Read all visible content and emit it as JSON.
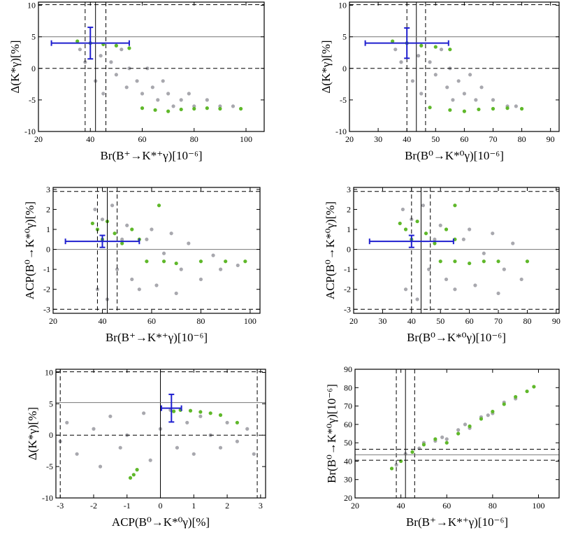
{
  "chart_data": [
    {
      "type": "scatter",
      "xlabel": "Br(B⁺→K*⁺γ)[10⁻⁶]",
      "ylabel": "Δ(K*γ)[%]",
      "xlim": [
        20,
        107
      ],
      "ylim": [
        -10,
        10.5
      ],
      "xticks": [
        20,
        40,
        60,
        80,
        100
      ],
      "yticks": [
        -10,
        -5,
        0,
        5,
        10
      ],
      "series": [
        {
          "color": "#a8a8ae",
          "x": [
            36,
            38,
            40,
            42,
            44,
            45,
            48,
            50,
            52,
            54,
            55,
            58,
            60,
            62,
            64,
            66,
            68,
            70,
            72,
            75,
            78,
            80,
            85,
            90,
            95
          ],
          "y": [
            3,
            1,
            4,
            -2,
            2,
            -4,
            1,
            -1,
            3,
            -3,
            0,
            -2,
            -4,
            0,
            -3,
            -5,
            -2,
            -4,
            -6,
            -5,
            -4,
            -6,
            -5,
            -6,
            -6
          ]
        },
        {
          "color": "#5fb82a",
          "x": [
            35,
            40,
            45,
            50,
            55,
            60,
            65,
            70,
            75,
            80,
            85,
            90,
            98
          ],
          "y": [
            4.3,
            4,
            3.8,
            3.6,
            3.2,
            -6.3,
            -6.6,
            -6.8,
            -6.5,
            -6.4,
            -6.3,
            -6.4,
            -6.4
          ]
        }
      ],
      "errorbar": {
        "x": 40,
        "y": 4,
        "xerr": 15,
        "yerr": 2.5,
        "color": "#1f1fcf"
      },
      "vlines": [
        {
          "value": 38,
          "style": "dashed"
        },
        {
          "value": 42,
          "style": "solid"
        },
        {
          "value": 46,
          "style": "dashed"
        }
      ],
      "hlines": [
        {
          "value": 0,
          "style": "dashed"
        },
        {
          "value": 5,
          "style": "solid"
        },
        {
          "value": 10.1,
          "style": "dashed"
        }
      ]
    },
    {
      "type": "scatter",
      "xlabel": "Br(B⁰→K*⁰γ)[10⁻⁶]",
      "ylabel": "Δ(K*γ)[%]",
      "xlim": [
        20,
        93
      ],
      "ylim": [
        -10,
        10.5
      ],
      "xticks": [
        20,
        30,
        40,
        50,
        60,
        70,
        80,
        90
      ],
      "yticks": [
        -10,
        -5,
        0,
        5,
        10
      ],
      "series": [
        {
          "color": "#a8a8ae",
          "x": [
            36,
            38,
            40,
            42,
            44,
            45,
            48,
            50,
            52,
            54,
            55,
            56,
            58,
            60,
            62,
            64,
            66,
            70,
            75,
            78
          ],
          "y": [
            3,
            1,
            4,
            -2,
            2,
            -4,
            1,
            -1,
            3,
            -3,
            0,
            -5,
            -2,
            -4,
            -1,
            -5,
            -3,
            -5,
            -6,
            -6
          ]
        },
        {
          "color": "#5fb82a",
          "x": [
            35,
            40,
            45,
            50,
            55,
            48,
            55,
            60,
            65,
            70,
            75,
            80
          ],
          "y": [
            4.3,
            4,
            3.6,
            3.4,
            3,
            -6.2,
            -6.6,
            -6.8,
            -6.5,
            -6.4,
            -6.3,
            -6.4
          ]
        }
      ],
      "errorbar": {
        "x": 40,
        "y": 4,
        "xerr": 14.5,
        "yerr": 2.4,
        "color": "#1f1fcf"
      },
      "vlines": [
        {
          "value": 40,
          "style": "dashed"
        },
        {
          "value": 43.3,
          "style": "solid"
        },
        {
          "value": 46.5,
          "style": "dashed"
        }
      ],
      "hlines": [
        {
          "value": 0,
          "style": "dashed"
        },
        {
          "value": 5,
          "style": "solid"
        },
        {
          "value": 10.1,
          "style": "dashed"
        }
      ]
    },
    {
      "type": "scatter",
      "xlabel": "Br(B⁺→K*⁺γ)[10⁻⁶]",
      "ylabel": "ACP(B⁰→K*⁰γ)[%]",
      "xlim": [
        20,
        104
      ],
      "ylim": [
        -3.2,
        3.1
      ],
      "xticks": [
        20,
        40,
        60,
        80,
        100
      ],
      "yticks": [
        -3,
        -2,
        -1,
        0,
        1,
        2,
        3
      ],
      "series": [
        {
          "color": "#a8a8ae",
          "x": [
            37,
            38,
            40,
            42,
            44,
            46,
            48,
            50,
            52,
            55,
            58,
            60,
            62,
            65,
            68,
            70,
            72,
            75,
            80,
            85,
            88,
            95
          ],
          "y": [
            2,
            -2,
            1.5,
            -2.5,
            2.2,
            -1,
            0.5,
            1.2,
            -1.5,
            -2,
            0.5,
            1,
            -1.8,
            -0.2,
            0.8,
            -2.2,
            -1,
            0.3,
            -1.5,
            -0.3,
            -1,
            -0.8
          ]
        },
        {
          "color": "#5fb82a",
          "x": [
            36,
            38,
            40,
            42,
            45,
            48,
            52,
            55,
            63,
            58,
            65,
            70,
            80,
            90,
            98
          ],
          "y": [
            1.3,
            1,
            0.5,
            1.4,
            0.8,
            0.3,
            1,
            0.5,
            2.2,
            -0.6,
            -0.6,
            -0.7,
            -0.6,
            -0.6,
            -0.6
          ]
        }
      ],
      "errorbar": {
        "x": 40,
        "y": 0.4,
        "xerr": 15,
        "yerr": 0.3,
        "color": "#1f1fcf"
      },
      "vlines": [
        {
          "value": 38,
          "style": "dashed"
        },
        {
          "value": 42,
          "style": "solid"
        },
        {
          "value": 46,
          "style": "dashed"
        }
      ],
      "hlines": [
        {
          "value": -3,
          "style": "dashed"
        },
        {
          "value": 0,
          "style": "solid"
        },
        {
          "value": 2.9,
          "style": "dashed"
        }
      ]
    },
    {
      "type": "scatter",
      "xlabel": "Br(B⁰→K*⁰γ)[10⁻⁶]",
      "ylabel": "ACP(B⁰→K*⁰γ)[%]",
      "xlim": [
        20,
        91
      ],
      "ylim": [
        -3.2,
        3.1
      ],
      "xticks": [
        20,
        30,
        40,
        50,
        60,
        70,
        80,
        90
      ],
      "yticks": [
        -3,
        -2,
        -1,
        0,
        1,
        2,
        3
      ],
      "series": [
        {
          "color": "#a8a8ae",
          "x": [
            37,
            38,
            40,
            42,
            44,
            46,
            48,
            50,
            52,
            55,
            58,
            60,
            62,
            65,
            68,
            70,
            72,
            75,
            78
          ],
          "y": [
            2,
            -2,
            1.5,
            -2.5,
            2.2,
            -1,
            0.5,
            1.2,
            -1.5,
            -2,
            0.5,
            1,
            -1.8,
            -0.2,
            0.8,
            -2.2,
            -1,
            0.3,
            -1.5
          ]
        },
        {
          "color": "#5fb82a",
          "x": [
            36,
            38,
            40,
            42,
            45,
            48,
            52,
            55,
            55,
            50,
            55,
            60,
            65,
            70,
            80
          ],
          "y": [
            1.3,
            1,
            0.5,
            1.4,
            0.8,
            0.3,
            1,
            0.5,
            2.2,
            -0.6,
            -0.6,
            -0.7,
            -0.6,
            -0.6,
            -0.6
          ]
        }
      ],
      "errorbar": {
        "x": 40,
        "y": 0.4,
        "xerr": 14.5,
        "yerr": 0.3,
        "color": "#1f1fcf"
      },
      "vlines": [
        {
          "value": 40,
          "style": "dashed"
        },
        {
          "value": 43.3,
          "style": "solid"
        },
        {
          "value": 46.5,
          "style": "dashed"
        }
      ],
      "hlines": [
        {
          "value": -3,
          "style": "dashed"
        },
        {
          "value": 0,
          "style": "solid"
        },
        {
          "value": 2.9,
          "style": "dashed"
        }
      ]
    },
    {
      "type": "scatter",
      "xlabel": "ACP(B⁰→K*⁰γ)[%]",
      "ylabel": "Δ(K*γ)[%]",
      "xlim": [
        -3.13,
        3.15
      ],
      "ylim": [
        -10,
        10.5
      ],
      "xticks": [
        -3,
        -2,
        -1,
        0,
        1,
        2,
        3
      ],
      "yticks": [
        -10,
        -5,
        0,
        5,
        10
      ],
      "series": [
        {
          "color": "#a8a8ae",
          "x": [
            -3,
            -2.8,
            -2.5,
            -2,
            -1.8,
            -1.5,
            -1.2,
            -1,
            -0.5,
            -0.3,
            0,
            0.3,
            0.5,
            0.8,
            1,
            1.2,
            1.5,
            1.8,
            2,
            2.3,
            2.6,
            2.8
          ],
          "y": [
            -1,
            2,
            -3,
            1,
            -5,
            3,
            -2,
            0,
            3.5,
            -4,
            1,
            4,
            -2,
            2,
            -3,
            3,
            0,
            -2,
            2,
            -1,
            1,
            -3
          ]
        },
        {
          "color": "#5fb82a",
          "x": [
            0.4,
            0.6,
            0.9,
            1.2,
            1.5,
            1.8,
            2.3,
            -0.9,
            -0.8,
            -0.7
          ],
          "y": [
            3.8,
            4,
            3.9,
            3.7,
            3.5,
            3.2,
            2,
            -6.8,
            -6.3,
            -5.5
          ]
        }
      ],
      "errorbar": {
        "x": 0.33,
        "y": 4.3,
        "xerr": 0.3,
        "yerr": 2.2,
        "color": "#1f1fcf"
      },
      "vlines": [
        {
          "value": -3,
          "style": "dashed"
        },
        {
          "value": 0,
          "style": "solid"
        },
        {
          "value": 2.9,
          "style": "dashed"
        }
      ],
      "hlines": [
        {
          "value": 0,
          "style": "dashed"
        },
        {
          "value": 5.2,
          "style": "solid"
        },
        {
          "value": 10.1,
          "style": "dashed"
        }
      ]
    },
    {
      "type": "scatter",
      "xlabel": "Br(B⁺→K*⁺γ)[10⁻⁶]",
      "ylabel": "Br(B⁰→K*⁰γ)[10⁻⁶]",
      "xlim": [
        20,
        109
      ],
      "ylim": [
        20,
        90
      ],
      "xticks": [
        20,
        40,
        60,
        80,
        100
      ],
      "yticks": [
        20,
        30,
        40,
        50,
        60,
        70,
        80,
        90
      ],
      "series": [
        {
          "color": "#a8a8ae",
          "x": [
            38,
            42,
            45,
            48,
            50,
            55,
            58,
            60,
            65,
            68,
            70,
            75,
            78,
            80,
            85,
            90
          ],
          "y": [
            38,
            44,
            45,
            47,
            50,
            51,
            53,
            52,
            57,
            60,
            58,
            64,
            65,
            66,
            72,
            74
          ]
        },
        {
          "color": "#5fb82a",
          "x": [
            36,
            40,
            45,
            50,
            55,
            60,
            65,
            70,
            75,
            80,
            85,
            90,
            95,
            98
          ],
          "y": [
            36,
            40,
            45,
            49,
            52,
            50,
            55,
            59,
            63,
            67,
            71,
            75,
            78,
            80.5
          ]
        }
      ],
      "vlines": [
        {
          "value": 38,
          "style": "dashed"
        },
        {
          "value": 42,
          "style": "solid"
        },
        {
          "value": 46,
          "style": "dashed"
        }
      ],
      "hlines": [
        {
          "value": 40.5,
          "style": "dashed"
        },
        {
          "value": 43.5,
          "style": "solid"
        },
        {
          "value": 46.5,
          "style": "dashed"
        }
      ]
    }
  ]
}
